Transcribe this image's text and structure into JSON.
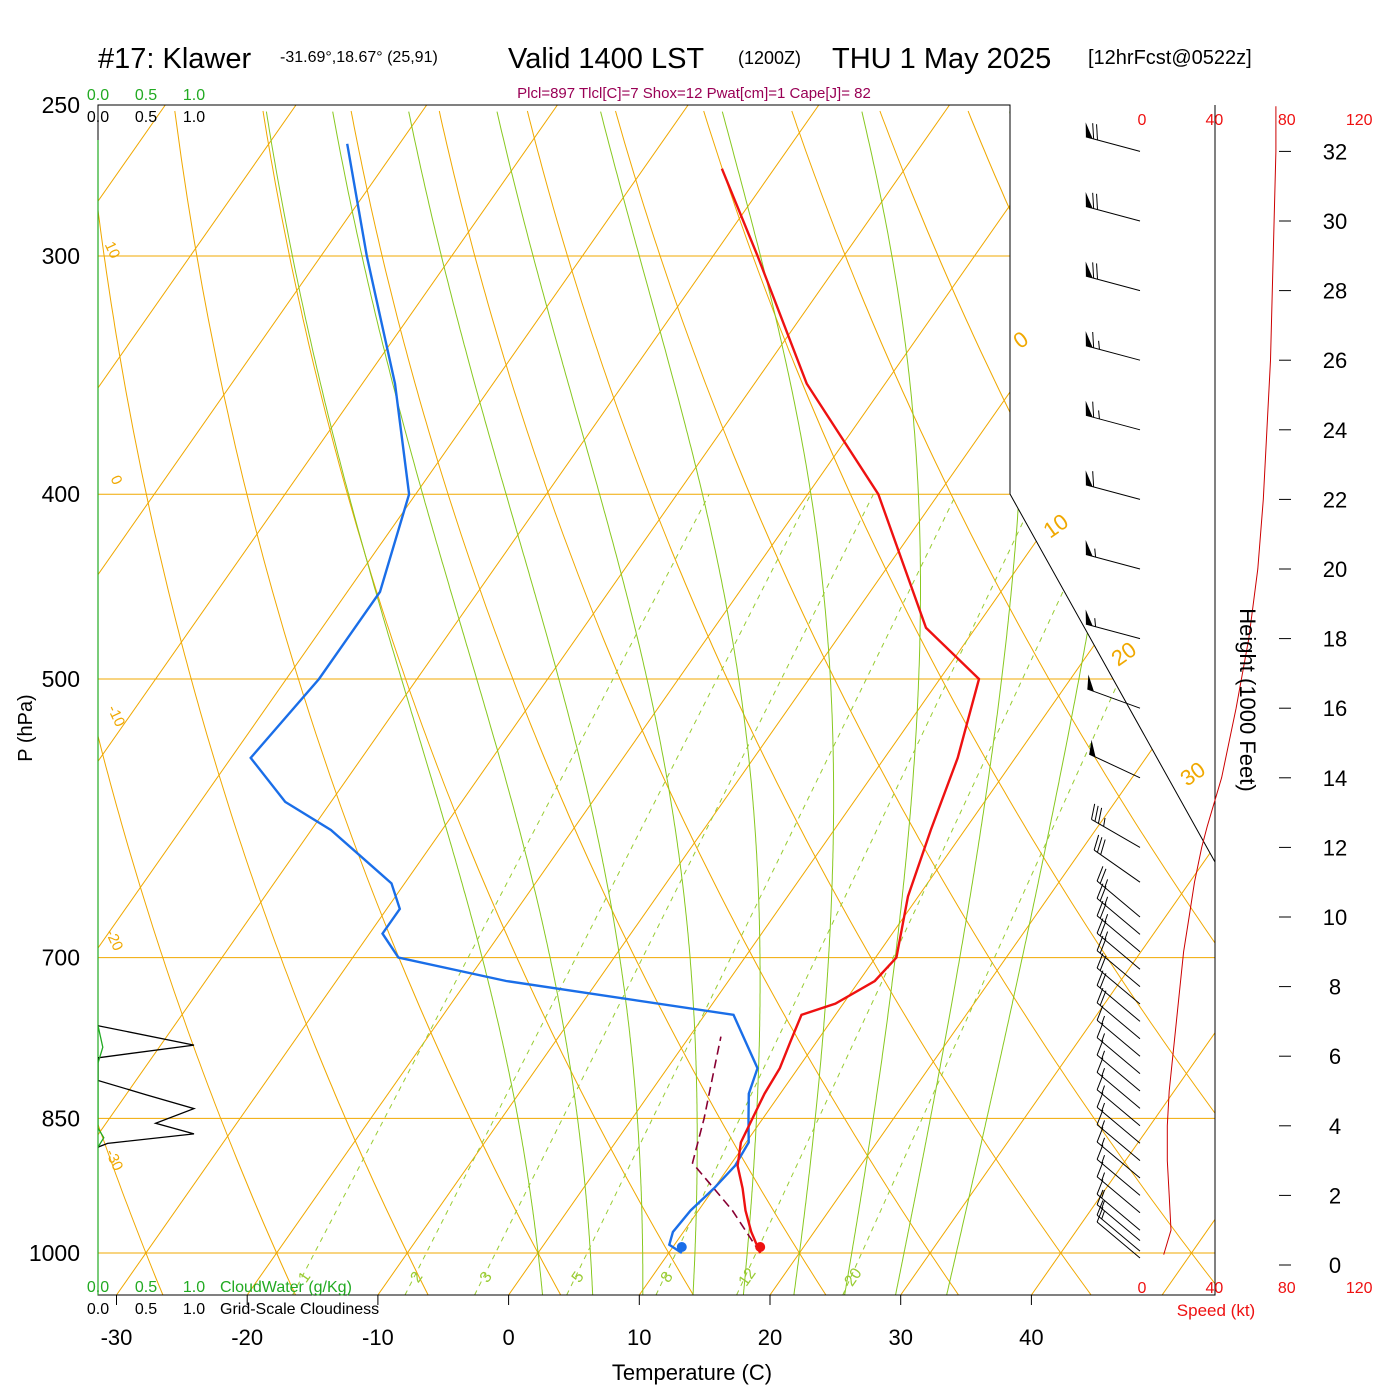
{
  "header": {
    "station": "#17: Klawer",
    "coords": "-31.69°,18.67° (25,91)",
    "valid": "Valid 1400 LST",
    "zulu": "(1200Z)",
    "date": "THU 1 May 2025",
    "forecast": "[12hrFcst@0522z]",
    "indices": "Plcl=897 Tlcl[C]=7 Shox=12 Pwat[cm]=1 Cape[J]= 82"
  },
  "colors": {
    "temperature": "#ee1111",
    "dewpoint": "#1a6ee8",
    "isotherm": "#f0a800",
    "moist_adiabat": "#88c820",
    "mixing_ratio": "#99cc33",
    "indices": "#990055",
    "cloudwater": "#22aa22",
    "wind_speed": "#cc0000"
  },
  "chart_data": {
    "type": "skew-t",
    "xlabel": "Temperature (C)",
    "ylabel": "P (hPa)",
    "right_axis_label": "Height (1000 Feet)",
    "temperature_ticks": [
      "-30",
      "-20",
      "-10",
      "0",
      "10",
      "20",
      "30",
      "40"
    ],
    "pressure_ticks": [
      "250",
      "300",
      "400",
      "500",
      "700",
      "850",
      "1000"
    ],
    "height_ticks": [
      "0",
      "2",
      "4",
      "6",
      "8",
      "10",
      "12",
      "14",
      "16",
      "18",
      "20",
      "22",
      "24",
      "26",
      "28",
      "30",
      "32"
    ],
    "wind_speed_ticks": [
      "0",
      "40",
      "80",
      "120"
    ],
    "wind_speed_label": "Speed (kt)",
    "cloud_scale_ticks": [
      "0.0",
      "0.5",
      "1.0"
    ],
    "cloudwater_label": "CloudWater (g/Kg)",
    "cloudiness_label": "Grid-Scale Cloudiness",
    "isotherm_labels": [
      "10",
      "0",
      "-10",
      "-20",
      "-30",
      "0",
      "10",
      "20",
      "30"
    ],
    "mixing_ratio_labels": [
      "1",
      "2",
      "3",
      "5",
      "8",
      "12",
      "20"
    ],
    "temperature_profile": [
      {
        "p": 1000,
        "t": 17.0
      },
      {
        "p": 975,
        "t": 15.2
      },
      {
        "p": 950,
        "t": 13.6
      },
      {
        "p": 925,
        "t": 12.2
      },
      {
        "p": 900,
        "t": 10.6
      },
      {
        "p": 875,
        "t": 9.6
      },
      {
        "p": 850,
        "t": 9.2
      },
      {
        "p": 825,
        "t": 8.8
      },
      {
        "p": 800,
        "t": 8.6
      },
      {
        "p": 775,
        "t": 8.0
      },
      {
        "p": 750,
        "t": 7.4
      },
      {
        "p": 740,
        "t": 9.4
      },
      {
        "p": 720,
        "t": 11.2
      },
      {
        "p": 700,
        "t": 11.6
      },
      {
        "p": 650,
        "t": 9.2
      },
      {
        "p": 600,
        "t": 7.4
      },
      {
        "p": 550,
        "t": 5.6
      },
      {
        "p": 500,
        "t": 3.0
      },
      {
        "p": 470,
        "t": -3.8
      },
      {
        "p": 400,
        "t": -14.6
      },
      {
        "p": 350,
        "t": -26.0
      },
      {
        "p": 300,
        "t": -36.6
      },
      {
        "p": 270,
        "t": -44.0
      }
    ],
    "dewpoint_profile": [
      {
        "p": 1000,
        "t": 11.0
      },
      {
        "p": 990,
        "t": 9.6
      },
      {
        "p": 975,
        "t": 9.2
      },
      {
        "p": 950,
        "t": 9.4
      },
      {
        "p": 925,
        "t": 10.0
      },
      {
        "p": 900,
        "t": 10.4
      },
      {
        "p": 875,
        "t": 10.2
      },
      {
        "p": 850,
        "t": 8.9
      },
      {
        "p": 825,
        "t": 7.6
      },
      {
        "p": 800,
        "t": 6.9
      },
      {
        "p": 750,
        "t": 2.2
      },
      {
        "p": 720,
        "t": -17.0
      },
      {
        "p": 700,
        "t": -26.5
      },
      {
        "p": 680,
        "t": -29.0
      },
      {
        "p": 660,
        "t": -29.0
      },
      {
        "p": 640,
        "t": -31.0
      },
      {
        "p": 600,
        "t": -38.5
      },
      {
        "p": 580,
        "t": -43.5
      },
      {
        "p": 550,
        "t": -48.5
      },
      {
        "p": 500,
        "t": -47.5
      },
      {
        "p": 450,
        "t": -47.5
      },
      {
        "p": 400,
        "t": -50.5
      },
      {
        "p": 350,
        "t": -57.5
      },
      {
        "p": 300,
        "t": -66.5
      },
      {
        "p": 262,
        "t": -74.0
      }
    ],
    "parcel_profile": [
      {
        "p": 1000,
        "t": 17.0
      },
      {
        "p": 950,
        "t": 12.6
      },
      {
        "p": 897,
        "t": 7.0
      },
      {
        "p": 850,
        "t": 5.5
      },
      {
        "p": 800,
        "t": 3.6
      },
      {
        "p": 770,
        "t": 2.4
      }
    ],
    "surface_temperature": 17.0,
    "surface_dewpoint": 11.0,
    "wind_speed_profile_kt": [
      {
        "h": 0.3,
        "s": 12
      },
      {
        "h": 1.0,
        "s": 16
      },
      {
        "h": 2.0,
        "s": 15
      },
      {
        "h": 3.0,
        "s": 14
      },
      {
        "h": 4.0,
        "s": 14
      },
      {
        "h": 5.0,
        "s": 15
      },
      {
        "h": 6.0,
        "s": 17
      },
      {
        "h": 7.0,
        "s": 19
      },
      {
        "h": 8.0,
        "s": 21
      },
      {
        "h": 9.0,
        "s": 23
      },
      {
        "h": 10.0,
        "s": 26
      },
      {
        "h": 11.0,
        "s": 29
      },
      {
        "h": 12.0,
        "s": 33
      },
      {
        "h": 12.6,
        "s": 36
      },
      {
        "h": 14.0,
        "s": 44
      },
      {
        "h": 16.0,
        "s": 52
      },
      {
        "h": 18.0,
        "s": 59
      },
      {
        "h": 20.0,
        "s": 64
      },
      {
        "h": 22.0,
        "s": 67
      },
      {
        "h": 24.0,
        "s": 69
      },
      {
        "h": 26.0,
        "s": 71
      },
      {
        "h": 28.0,
        "s": 72
      },
      {
        "h": 30.0,
        "s": 73
      },
      {
        "h": 32.0,
        "s": 74
      },
      {
        "h": 33.3,
        "s": 74
      }
    ],
    "wind_barbs": [
      {
        "h": 32.0,
        "speed_kt": 70,
        "dir_deg": 255
      },
      {
        "h": 30.0,
        "speed_kt": 70,
        "dir_deg": 255
      },
      {
        "h": 28.0,
        "speed_kt": 70,
        "dir_deg": 255
      },
      {
        "h": 26.0,
        "speed_kt": 65,
        "dir_deg": 255
      },
      {
        "h": 24.0,
        "speed_kt": 65,
        "dir_deg": 255
      },
      {
        "h": 22.0,
        "speed_kt": 60,
        "dir_deg": 255
      },
      {
        "h": 20.0,
        "speed_kt": 55,
        "dir_deg": 255
      },
      {
        "h": 18.0,
        "speed_kt": 55,
        "dir_deg": 255
      },
      {
        "h": 16.0,
        "speed_kt": 50,
        "dir_deg": 250
      },
      {
        "h": 14.0,
        "speed_kt": 50,
        "dir_deg": 245
      },
      {
        "h": 12.0,
        "speed_kt": 35,
        "dir_deg": 240
      },
      {
        "h": 11.0,
        "speed_kt": 30,
        "dir_deg": 235
      },
      {
        "h": 10.0,
        "speed_kt": 25,
        "dir_deg": 230
      },
      {
        "h": 9.5,
        "speed_kt": 25,
        "dir_deg": 230
      },
      {
        "h": 9.0,
        "speed_kt": 25,
        "dir_deg": 230
      },
      {
        "h": 8.5,
        "speed_kt": 25,
        "dir_deg": 230
      },
      {
        "h": 8.0,
        "speed_kt": 20,
        "dir_deg": 230
      },
      {
        "h": 7.5,
        "speed_kt": 20,
        "dir_deg": 230
      },
      {
        "h": 7.0,
        "speed_kt": 20,
        "dir_deg": 230
      },
      {
        "h": 6.5,
        "speed_kt": 20,
        "dir_deg": 230
      },
      {
        "h": 6.0,
        "speed_kt": 15,
        "dir_deg": 230
      },
      {
        "h": 5.5,
        "speed_kt": 15,
        "dir_deg": 230
      },
      {
        "h": 5.0,
        "speed_kt": 15,
        "dir_deg": 230
      },
      {
        "h": 4.5,
        "speed_kt": 15,
        "dir_deg": 230
      },
      {
        "h": 4.0,
        "speed_kt": 15,
        "dir_deg": 230
      },
      {
        "h": 3.5,
        "speed_kt": 15,
        "dir_deg": 230
      },
      {
        "h": 3.0,
        "speed_kt": 15,
        "dir_deg": 230
      },
      {
        "h": 2.5,
        "speed_kt": 15,
        "dir_deg": 230
      },
      {
        "h": 2.0,
        "speed_kt": 15,
        "dir_deg": 230
      },
      {
        "h": 1.5,
        "speed_kt": 15,
        "dir_deg": 230
      },
      {
        "h": 1.0,
        "speed_kt": 15,
        "dir_deg": 230
      },
      {
        "h": 0.7,
        "speed_kt": 15,
        "dir_deg": 230
      },
      {
        "h": 0.4,
        "speed_kt": 15,
        "dir_deg": 230
      },
      {
        "h": 0.2,
        "speed_kt": 10,
        "dir_deg": 230
      }
    ],
    "cloudiness_profile": [
      {
        "p": 760,
        "v": 0.0
      },
      {
        "p": 778,
        "v": 1.0
      },
      {
        "p": 790,
        "v": 0.0
      },
      {
        "p": 812,
        "v": 0.0
      },
      {
        "p": 826,
        "v": 0.5
      },
      {
        "p": 840,
        "v": 1.0
      },
      {
        "p": 855,
        "v": 0.6
      },
      {
        "p": 866,
        "v": 1.0
      },
      {
        "p": 876,
        "v": 0.1
      },
      {
        "p": 880,
        "v": 0.0
      }
    ],
    "cloudwater_profile": [
      {
        "p": 760,
        "v": 0.0
      },
      {
        "p": 780,
        "v": 0.05
      },
      {
        "p": 795,
        "v": 0.0
      },
      {
        "p": 860,
        "v": 0.0
      },
      {
        "p": 870,
        "v": 0.06
      },
      {
        "p": 880,
        "v": 0.0
      }
    ]
  }
}
